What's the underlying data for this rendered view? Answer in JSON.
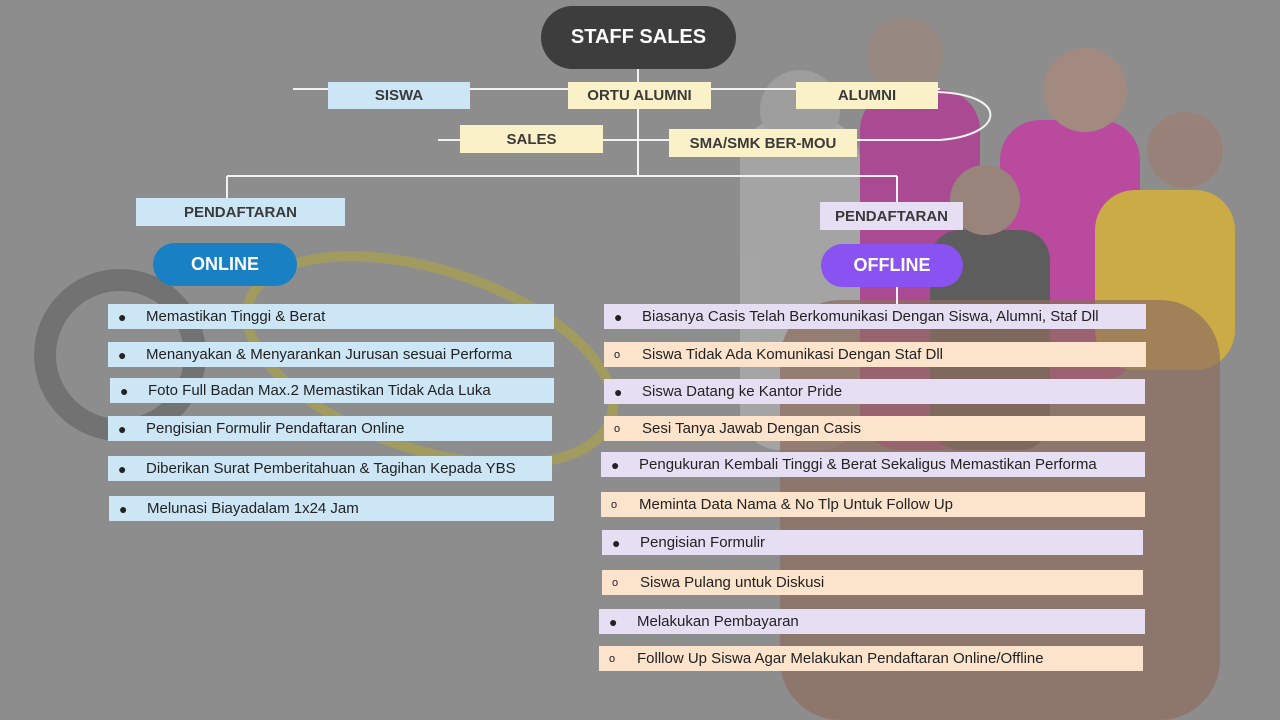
{
  "top": {
    "title": "STAFF SALES"
  },
  "sources": {
    "siswa": "SISWA",
    "ortu_alumni": "ORTU ALUMNI",
    "alumni": "ALUMNI",
    "sales": "SALES",
    "sma_smk": "SMA/SMK BER-MOU"
  },
  "left": {
    "header": "PENDAFTARAN",
    "pill": "ONLINE",
    "items": [
      "Memastikan Tinggi & Berat",
      "Menanyakan & Menyarankan Jurusan sesuai Performa",
      "Foto Full Badan Max.2 Memastikan Tidak Ada Luka",
      "Pengisian Formulir Pendaftaran Online",
      "Diberikan Surat Pemberitahuan & Tagihan Kepada YBS",
      "Melunasi Biayadalam 1x24 Jam"
    ]
  },
  "right": {
    "header": "PENDAFTARAN",
    "pill": "OFFLINE",
    "items": [
      {
        "text": "Biasanya Casis Telah Berkomunikasi Dengan Siswa, Alumni, Staf Dll",
        "marker": "●"
      },
      {
        "text": "Siswa Tidak Ada Komunikasi Dengan Staf Dll",
        "marker": "o"
      },
      {
        "text": "Siswa Datang ke Kantor Pride",
        "marker": "●"
      },
      {
        "text": "Sesi Tanya Jawab Dengan Casis",
        "marker": "o"
      },
      {
        "text": "Pengukuran Kembali Tinggi & Berat Sekaligus Memastikan Performa",
        "marker": "●"
      },
      {
        "text": "Meminta Data Nama & No Tlp Untuk Follow Up",
        "marker": "o"
      },
      {
        "text": "Pengisian Formulir",
        "marker": "●"
      },
      {
        "text": "Siswa Pulang untuk Diskusi",
        "marker": "o"
      },
      {
        "text": "Melakukan Pembayaran",
        "marker": "●"
      },
      {
        "text": "Folllow Up Siswa Agar Melakukan Pendaftaran Online/Offline",
        "marker": "o"
      }
    ]
  },
  "colors": {
    "background": "#8d8d8d",
    "online_pill": "#1a80c4",
    "offline_pill": "#8a52f0",
    "title_pill": "#3d3d3d"
  }
}
